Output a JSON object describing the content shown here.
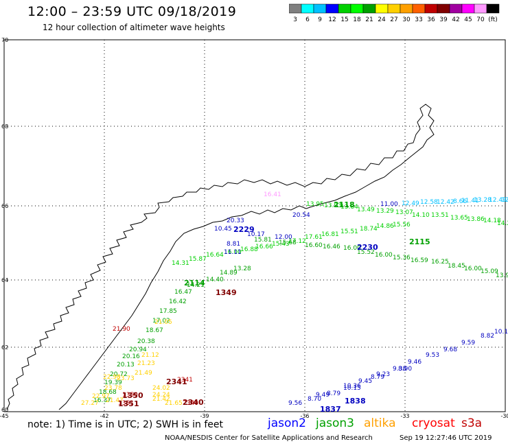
{
  "title": "12:00 – 23:59 UTC 09/18/2019",
  "subtitle": "12 hour collection of altimeter wave heights",
  "colorbar": {
    "colors": [
      "#808080",
      "#00ffff",
      "#00c0ff",
      "#0000ff",
      "#00d000",
      "#00ff00",
      "#00a000",
      "#ffff00",
      "#ffd000",
      "#ffa000",
      "#ff6000",
      "#c00000",
      "#800000",
      "#a000a0",
      "#ff00ff",
      "#ff99ff",
      "#000000"
    ],
    "labels": [
      "3",
      "6",
      "9",
      "12",
      "15",
      "18",
      "21",
      "24",
      "27",
      "30",
      "33",
      "36",
      "39",
      "42",
      "45",
      "70",
      "(ft)"
    ]
  },
  "axes": {
    "lon_ticks": [
      "-45",
      "-42",
      "-39",
      "-36",
      "-33",
      "-30"
    ],
    "lat_ticks": [
      "70",
      "68",
      "66",
      "64",
      "62",
      "60"
    ],
    "lon_range": [
      -45,
      -30
    ],
    "lat_range": [
      59.8,
      70
    ]
  },
  "tracks": [
    {
      "color": "#00c0ff",
      "labels": [
        "12.49",
        "12.58",
        "12.42",
        "8.66",
        "13.28",
        "11.41",
        "12.49",
        "12.40"
      ]
    },
    {
      "color": "#00d000",
      "labels": [
        "13.95",
        "13.93",
        "13.84",
        "13.49",
        "13.29",
        "13.07",
        "14.10",
        "13.51",
        "13.65",
        "13.86",
        "14.18",
        "14.21",
        "15.56",
        "14.86",
        "18.74",
        "15.51",
        "16.81",
        "17.61",
        "17.12",
        "15.43",
        "16.66",
        "16.88",
        "16.00",
        "16.64",
        "15.87",
        "14.31"
      ]
    },
    {
      "color": "#00a000",
      "labels": [
        "15.81",
        "15.68",
        "16.60",
        "16.46",
        "16.00",
        "15.52",
        "16.00",
        "15.36",
        "16.59",
        "16.25",
        "18.45",
        "16.00",
        "15.09",
        "13.96",
        "13.28",
        "14.89",
        "14.40",
        "14.21",
        "16.47",
        "16.42",
        "17.85",
        "17.02",
        "18.67",
        "20.38",
        "20.94",
        "20.16",
        "20.13",
        "20.72",
        "19.39",
        "18.68",
        "16.37"
      ]
    },
    {
      "color": "#0000c0",
      "labels": [
        "20.54",
        "20.33",
        "11.00",
        "11.11",
        "10.45",
        "10.17",
        "12.00",
        "8.81",
        "9.56",
        "8.70",
        "8.79",
        "10.15",
        "9.45",
        "9.23",
        "9.38",
        "9.46",
        "9.53",
        "9.68",
        "9.59",
        "8.82",
        "10.15",
        "9.49",
        "10.36",
        "8.79",
        "8.90"
      ]
    },
    {
      "color": "#ffd000",
      "labels": [
        "21.05",
        "21.12",
        "21.23",
        "21.49",
        "22.98",
        "23.78",
        "21.42",
        "24.02",
        "24.24",
        "21.47",
        "22.97",
        "27.27",
        "21.65",
        "23.73"
      ]
    },
    {
      "color": "#c00000",
      "labels": [
        "21.90",
        "1351",
        "1350",
        "2340",
        "2341"
      ]
    },
    {
      "color": "#ff99ff",
      "labels": [
        "16.41"
      ]
    }
  ],
  "pass_ids": [
    {
      "id": "2118",
      "color": "#00a000"
    },
    {
      "id": "2115",
      "color": "#00a000"
    },
    {
      "id": "2114",
      "color": "#00a000"
    },
    {
      "id": "1349",
      "color": "#800000"
    },
    {
      "id": "2229",
      "color": "#0000c0"
    },
    {
      "id": "2230",
      "color": "#0000c0"
    },
    {
      "id": "1838",
      "color": "#0000c0"
    },
    {
      "id": "1837",
      "color": "#0000c0"
    },
    {
      "id": "1351",
      "color": "#800000"
    },
    {
      "id": "1350",
      "color": "#800000"
    },
    {
      "id": "2340",
      "color": "#800000"
    },
    {
      "id": "2341",
      "color": "#800000"
    }
  ],
  "note": "note: 1) Time is in UTC; 2) SWH is in feet",
  "satellites": [
    {
      "name": "jason2",
      "color": "#0000ff"
    },
    {
      "name": "jason3",
      "color": "#00a000"
    },
    {
      "name": "altika",
      "color": "#ffa000"
    },
    {
      "name": "cryosat",
      "color": "#ff0000"
    },
    {
      "name": "s3a",
      "color": "#c00000"
    }
  ],
  "footer": {
    "org": "NOAA/NESDIS Center for Satellite Applications and Research",
    "timestamp": "Sep 19 12:27:46 UTC 2019"
  }
}
